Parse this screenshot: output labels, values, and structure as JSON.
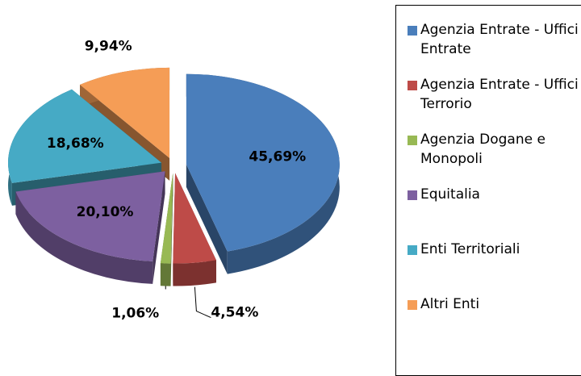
{
  "chart_data": {
    "type": "pie",
    "categories": [
      "Agenzia Entrate - Uffici Entrate",
      "Agenzia Entrate - Uffici Terrorio",
      "Agenzia Dogane e Monopoli",
      "Equitalia",
      "Enti Territoriali",
      "Altri Enti"
    ],
    "values": [
      45.69,
      4.54,
      1.06,
      20.1,
      18.68,
      9.94
    ],
    "value_labels": [
      "45,69%",
      "4,54%",
      "1,06%",
      "20,10%",
      "18,68%",
      "9,94%"
    ],
    "colors": [
      "#4a7ebb",
      "#be4b48",
      "#98b954",
      "#7d60a0",
      "#46aac5",
      "#f59d56"
    ],
    "legend": "right"
  }
}
